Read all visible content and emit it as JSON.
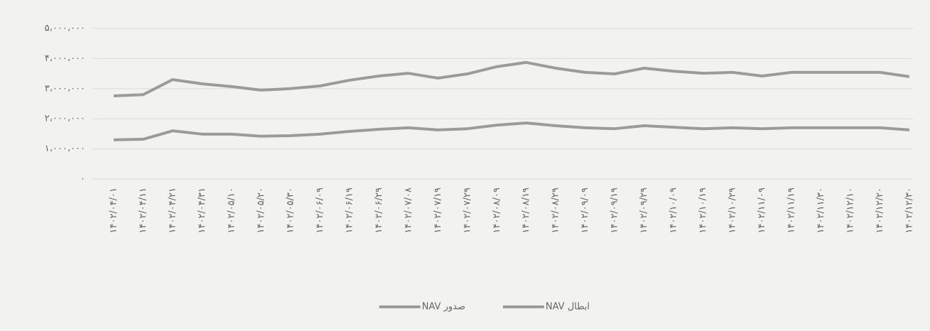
{
  "chart_data": {
    "type": "line",
    "categories": [
      "۱۴۰۲/۰۴/۰۱",
      "۱۴۰۲/۰۴/۱۱",
      "۱۴۰۲/۰۴/۲۱",
      "۱۴۰۲/۰۴/۳۱",
      "۱۴۰۲/۰۵/۱۰",
      "۱۴۰۲/۰۵/۲۰",
      "۱۴۰۲/۰۵/۳۰",
      "۱۴۰۲/۰۶/۰۹",
      "۱۴۰۲/۰۶/۱۹",
      "۱۴۰۲/۰۶/۲۹",
      "۱۴۰۲/۰۷/۰۸",
      "۱۴۰۲/۰۷/۱۹",
      "۱۴۰۲/۰۷/۲۹",
      "۱۴۰۲/۰۸/۰۹",
      "۱۴۰۲/۰۸/۱۹",
      "۱۴۰۲/۰۸/۲۹",
      "۱۴۰۲/۰۹/۰۹",
      "۱۴۰۲/۰۹/۱۹",
      "۱۴۰۲/۰۹/۲۹",
      "۱۴۰۲/۱۰/۰۹",
      "۱۴۰۲/۱۰/۱۹",
      "۱۴۰۲/۱۰/۲۹",
      "۱۴۰۲/۱۱/۰۹",
      "۱۴۰۲/۱۱/۱۹",
      "۱۴۰۲/۱۱/۳۰",
      "۱۴۰۲/۱۲/۱۰",
      "۱۴۰۲/۱۲/۲۰",
      "۱۴۰۲/۱۲/۳۰"
    ],
    "series": [
      {
        "name": "ابطال NAV",
        "color": "#9b9b9b",
        "values": [
          1300000,
          1320000,
          1600000,
          1490000,
          1490000,
          1420000,
          1440000,
          1490000,
          1580000,
          1650000,
          1700000,
          1630000,
          1670000,
          1790000,
          1860000,
          1770000,
          1700000,
          1670000,
          1770000,
          1720000,
          1670000,
          1700000,
          1670000,
          1700000,
          1700000,
          1700000,
          1700000,
          1630000
        ]
      },
      {
        "name": "صدور NAV",
        "color": "#9b9b9b",
        "values": [
          2760000,
          2800000,
          3300000,
          3160000,
          3070000,
          2950000,
          3000000,
          3090000,
          3280000,
          3420000,
          3510000,
          3350000,
          3490000,
          3730000,
          3870000,
          3680000,
          3540000,
          3490000,
          3680000,
          3580000,
          3510000,
          3540000,
          3420000,
          3540000,
          3540000,
          3540000,
          3540000,
          3400000
        ]
      }
    ],
    "ylim": [
      0,
      5000000
    ],
    "yticks": [
      {
        "value": 0,
        "label": "۰"
      },
      {
        "value": 1000000,
        "label": "۱،۰۰۰،۰۰۰"
      },
      {
        "value": 2000000,
        "label": "۲،۰۰۰،۰۰۰"
      },
      {
        "value": 3000000,
        "label": "۳،۰۰۰،۰۰۰"
      },
      {
        "value": 4000000,
        "label": "۴،۰۰۰،۰۰۰"
      },
      {
        "value": 5000000,
        "label": "۵،۰۰۰،۰۰۰"
      }
    ],
    "grid": true
  }
}
